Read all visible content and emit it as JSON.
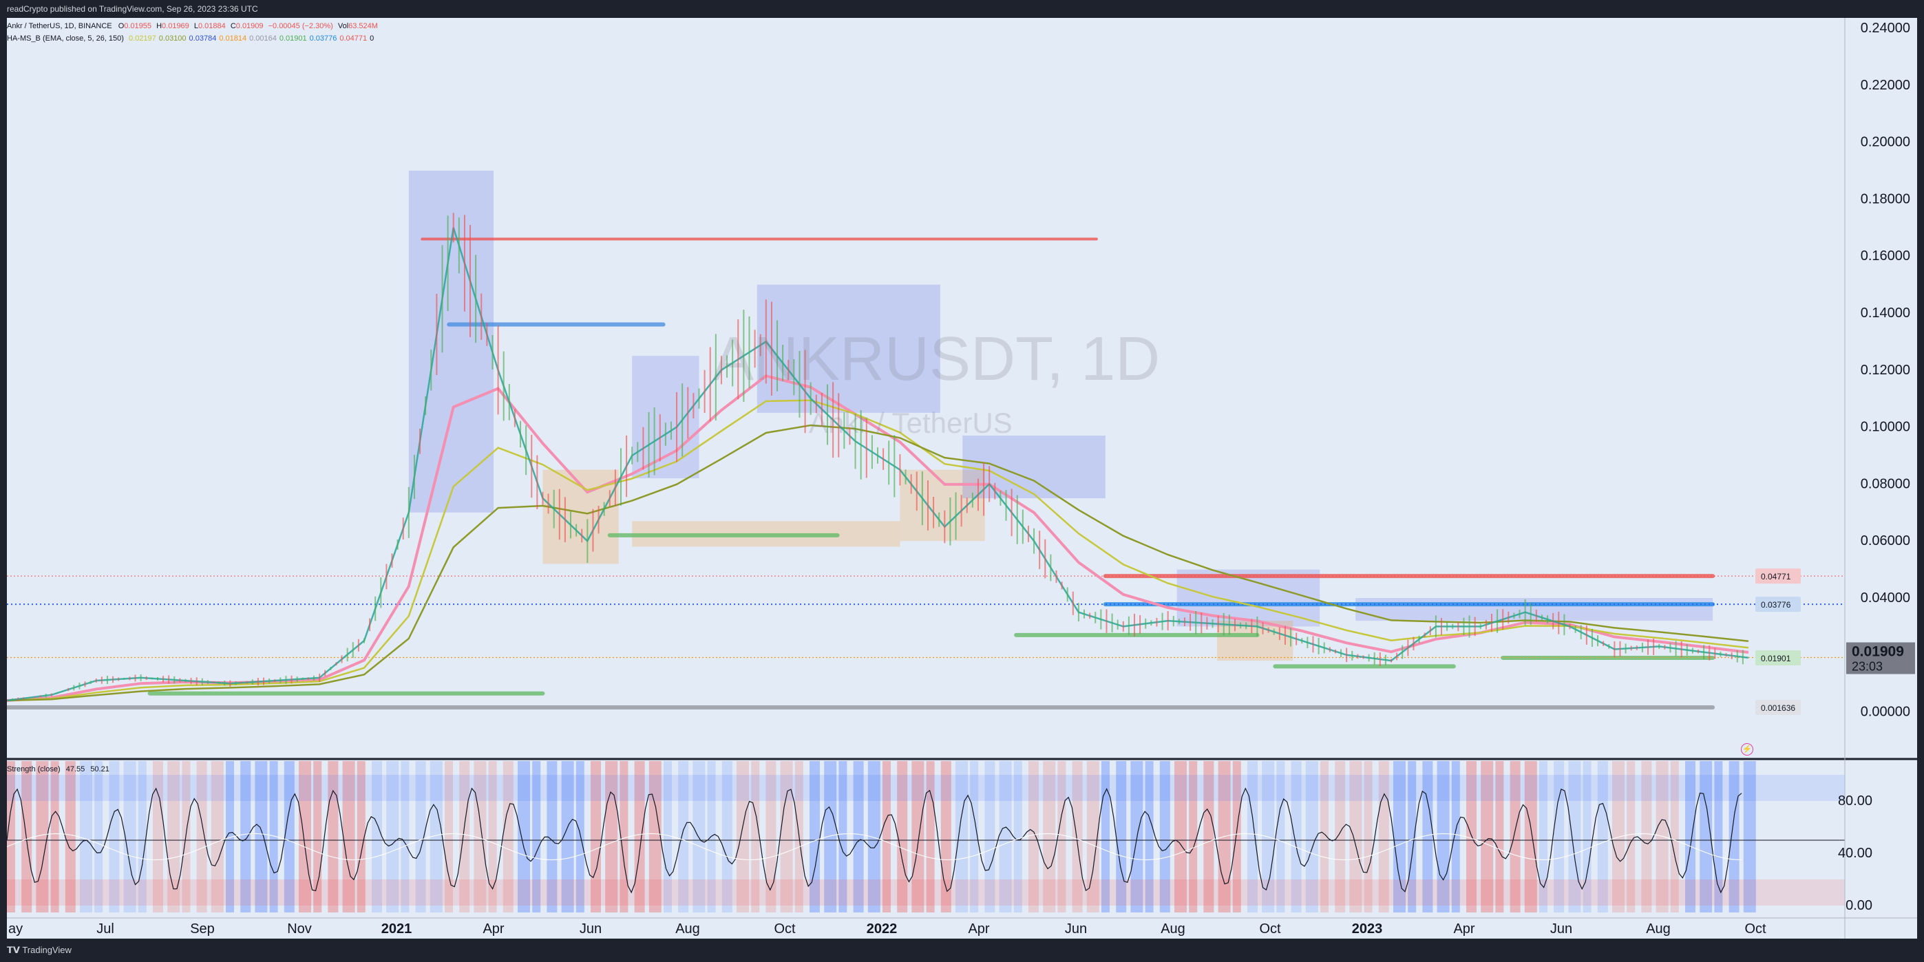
{
  "header": {
    "published_text": "readCrypto published on TradingView.com, Sep 26, 2023 23:36 UTC"
  },
  "footer": {
    "brand": "TradingView"
  },
  "legend": {
    "symbol_line": "Ankr / TetherUS, 1D, BINANCE",
    "ohlc": {
      "o_label": "O",
      "o": "0.01955",
      "h_label": "H",
      "h": "0.01969",
      "l_label": "L",
      "l": "0.01884",
      "c_label": "C",
      "c": "0.01909",
      "change": "−0.00045 (−2.30%)",
      "vol_label": "Vol",
      "vol": "63.524M"
    },
    "indicator_name": "HA-MS_B (EMA, close, 5, 26, 150)",
    "indicator_values": [
      "0.02197",
      "0.03100",
      "0.03784",
      "0.01814",
      "0.00164",
      "0.01901",
      "0.03776",
      "0.04771",
      "0"
    ],
    "indicator_colors": [
      "#c6c73a",
      "#8d9a28",
      "#2f4fd6",
      "#f7931a",
      "#9598a1",
      "#4caf50",
      "#1e88e5",
      "#ef5350",
      "#131722"
    ]
  },
  "watermark": {
    "symbol": "ANKRUSDT, 1D",
    "name": "Ankr / TetherUS"
  },
  "price_axis": {
    "ticks": [
      "0.24000",
      "0.22000",
      "0.20000",
      "0.18000",
      "0.16000",
      "0.14000",
      "0.12000",
      "0.10000",
      "0.08000",
      "0.06000",
      "0.04000",
      "0.02000",
      "0.00000"
    ]
  },
  "price_labels": [
    {
      "text": "0.04771",
      "color": "#f4c7cb"
    },
    {
      "text": "0.03776",
      "color": "#c6d9f2"
    },
    {
      "text": "0.01901",
      "color": "#c8e6c9"
    },
    {
      "text": "0.001636",
      "color": "#dfe1e6"
    }
  ],
  "last_price": {
    "price": "0.01909",
    "countdown": "23:03"
  },
  "time_axis": {
    "labels": [
      "ay",
      "Jul",
      "Sep",
      "Nov",
      "2021",
      "Apr",
      "Jun",
      "Aug",
      "Oct",
      "2022",
      "Apr",
      "Jun",
      "Aug",
      "Oct",
      "2023",
      "Apr",
      "Jun",
      "Aug",
      "Oct"
    ]
  },
  "oscillator": {
    "name": "Strength (close)",
    "v1": "47.55",
    "v2": "50.21",
    "ticks": [
      "80.00",
      "40.00",
      "0.00"
    ]
  },
  "chart_data": {
    "type": "line",
    "title": "Ankr / TetherUS, 1D, BINANCE",
    "xlabel": "",
    "ylabel": "",
    "x": [
      "2020-06",
      "2020-07",
      "2020-08",
      "2020-09",
      "2020-10",
      "2020-11",
      "2020-12",
      "2021-01",
      "2021-02",
      "2021-03",
      "2021-04",
      "2021-05",
      "2021-06",
      "2021-07",
      "2021-08",
      "2021-09",
      "2021-10",
      "2021-11",
      "2021-12",
      "2022-01",
      "2022-02",
      "2022-03",
      "2022-04",
      "2022-05",
      "2022-06",
      "2022-07",
      "2022-08",
      "2022-09",
      "2022-10",
      "2022-11",
      "2022-12",
      "2023-01",
      "2023-02",
      "2023-03",
      "2023-04",
      "2023-05",
      "2023-06",
      "2023-07",
      "2023-08",
      "2023-09"
    ],
    "series": [
      {
        "name": "",
        "values": [
          0.004,
          0.006,
          0.011,
          0.012,
          0.011,
          0.01,
          0.011,
          0.012,
          0.025,
          0.07,
          0.17,
          0.12,
          0.075,
          0.06,
          0.09,
          0.1,
          0.12,
          0.13,
          0.11,
          0.095,
          0.085,
          0.065,
          0.08,
          0.06,
          0.035,
          0.03,
          0.032,
          0.031,
          0.03,
          0.025,
          0.02,
          0.018,
          0.03,
          0.03,
          0.035,
          0.03,
          0.022,
          0.023,
          0.021,
          0.019
        ]
      }
    ],
    "ylim": [
      -0.01,
      0.24
    ],
    "grid": false,
    "legend": "top-left"
  }
}
